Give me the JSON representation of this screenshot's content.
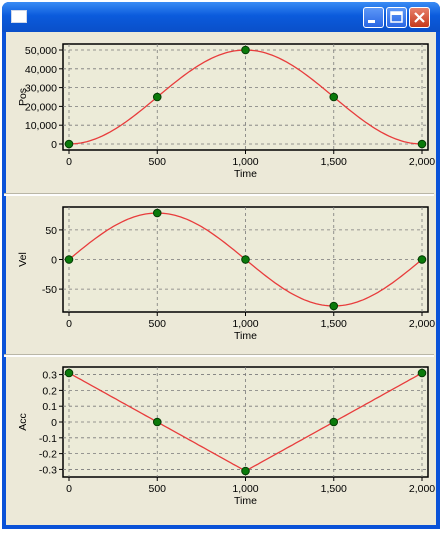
{
  "window": {
    "title": "",
    "buttons": {
      "minimize": "minimize-icon",
      "maximize": "maximize-icon",
      "close": "close-icon"
    }
  },
  "colors": {
    "curve": "#e83c3c",
    "marker": "#0a7a0a",
    "marker_edge": "#033b03",
    "plot_bg": "#ecebd8",
    "grid": "#7a7a7a"
  },
  "chart_data": [
    {
      "type": "line",
      "xlabel": "Time",
      "ylabel": "Pos",
      "xlim": [
        0,
        2000
      ],
      "ylim": [
        0,
        50000
      ],
      "xticks": [
        "0",
        "500",
        "1,000",
        "1,500",
        "2,000"
      ],
      "yticks": [
        "0",
        "10,000",
        "20,000",
        "30,000",
        "40,000",
        "50,000"
      ],
      "grid": true,
      "curve": "sine-bell",
      "points": {
        "x": [
          0,
          500,
          1000,
          1500,
          2000
        ],
        "y": [
          0,
          25000,
          50000,
          25000,
          0
        ]
      }
    },
    {
      "type": "line",
      "xlabel": "Time",
      "ylabel": "Vel",
      "xlim": [
        0,
        2000
      ],
      "ylim": [
        -78.5,
        78.5
      ],
      "xticks": [
        "0",
        "500",
        "1,000",
        "1,500",
        "2,000"
      ],
      "yticks": [
        "-50",
        "0",
        "50"
      ],
      "grid": true,
      "curve": "sine",
      "points": {
        "x": [
          0,
          500,
          1000,
          1500,
          2000
        ],
        "y": [
          0,
          78.5,
          0,
          -78.5,
          0
        ]
      }
    },
    {
      "type": "line",
      "xlabel": "Time",
      "ylabel": "Acc",
      "xlim": [
        0,
        2000
      ],
      "ylim": [
        -0.31,
        0.31
      ],
      "xticks": [
        "0",
        "500",
        "1,000",
        "1,500",
        "2,000"
      ],
      "yticks": [
        "-0.3",
        "-0.2",
        "-0.1",
        "0",
        "0.1",
        "0.2",
        "0.3"
      ],
      "grid": true,
      "curve": "linear",
      "points": {
        "x": [
          0,
          500,
          1000,
          1500,
          2000
        ],
        "y": [
          0.31,
          0,
          -0.31,
          0,
          0.31
        ]
      }
    }
  ]
}
